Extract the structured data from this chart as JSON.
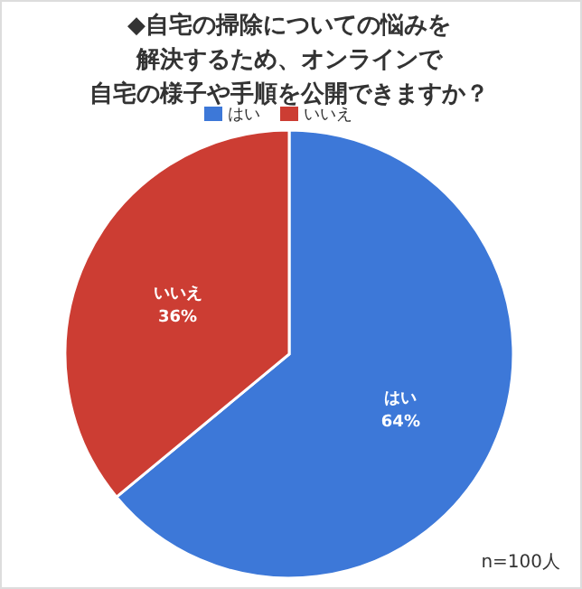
{
  "chart_data": {
    "type": "pie",
    "title": "◆自宅の掃除についての悩みを解決するため、オンラインで自宅の様子や手順を公開できますか？",
    "categories": [
      "はい",
      "いいえ"
    ],
    "values": [
      64,
      36
    ],
    "colors": [
      "#3d78d8",
      "#cc3d33"
    ],
    "value_labels": [
      "64%",
      "36%"
    ],
    "legend": "top",
    "annotations": [
      "n=100人"
    ]
  }
}
